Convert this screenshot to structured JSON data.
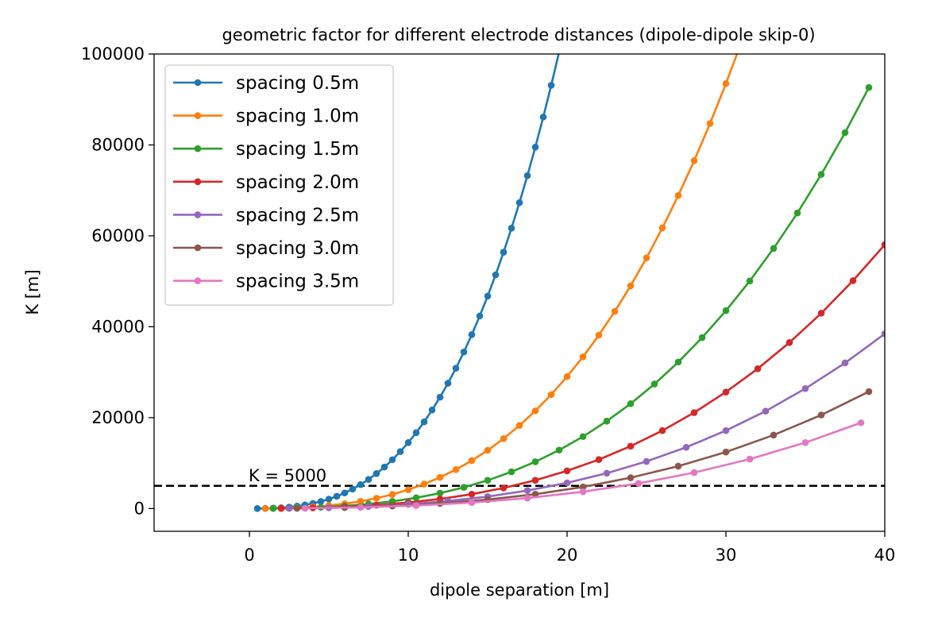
{
  "chart_data": {
    "type": "line",
    "title": "geometric factor for different electrode distances (dipole-dipole skip-0)",
    "xlabel": "dipole separation [m]",
    "ylabel": "K [m]",
    "xlim": [
      -6,
      40
    ],
    "ylim": [
      -5000,
      100000
    ],
    "xticks": [
      0,
      10,
      20,
      30,
      40
    ],
    "yticks": [
      0,
      20000,
      40000,
      60000,
      80000,
      100000
    ],
    "grid": false,
    "legend_position": "top-left",
    "marker": "circle",
    "reference_line": {
      "y": 5000,
      "style": "dashed",
      "color": "#000000",
      "label": "K = 5000"
    },
    "series": [
      {
        "name": "spacing 0.5m",
        "color": "#1f77b4",
        "spacing": 0.5
      },
      {
        "name": "spacing 1.0m",
        "color": "#ff7f0e",
        "spacing": 1.0
      },
      {
        "name": "spacing 1.5m",
        "color": "#2ca02c",
        "spacing": 1.5
      },
      {
        "name": "spacing 2.0m",
        "color": "#d62728",
        "spacing": 2.0
      },
      {
        "name": "spacing 2.5m",
        "color": "#9467bd",
        "spacing": 2.5
      },
      {
        "name": "spacing 3.0m",
        "color": "#8c564b",
        "spacing": 3.0
      },
      {
        "name": "spacing 3.5m",
        "color": "#e377c2",
        "spacing": 3.5
      }
    ]
  }
}
